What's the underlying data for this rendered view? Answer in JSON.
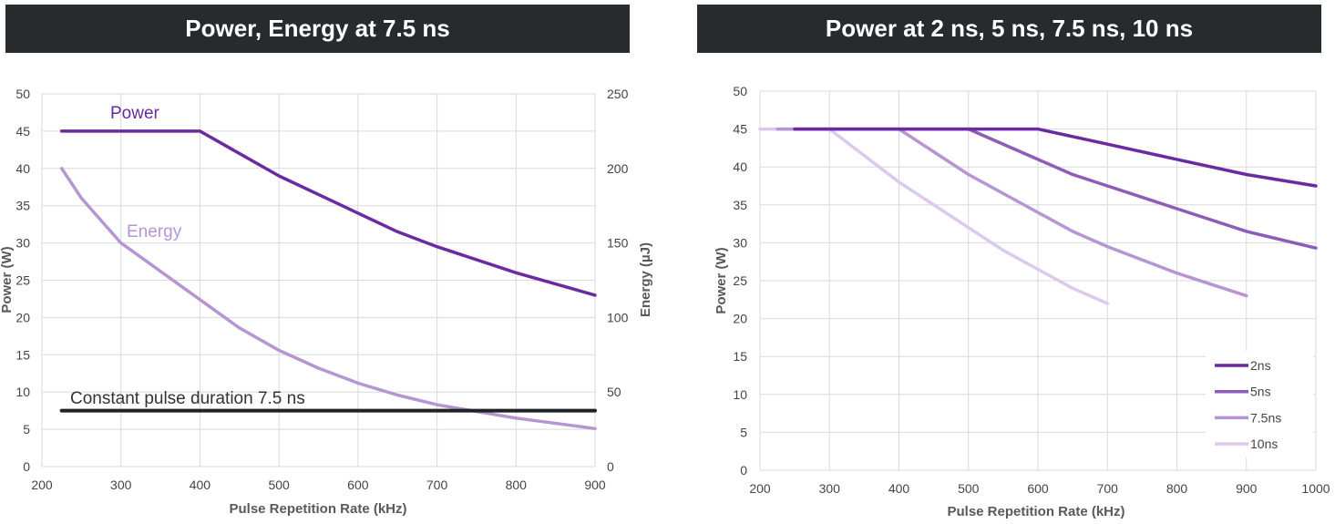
{
  "panels": {
    "left_title": "Power, Energy at 7.5 ns",
    "right_title": "Power at 2 ns, 5 ns, 7.5 ns, 10 ns"
  },
  "colors": {
    "power": "#6a2aa0",
    "energy": "#b695d3",
    "constant": "#1f2326",
    "2ns": "#6a2aa0",
    "5ns": "#8c5cb8",
    "7.5ns": "#b695d3",
    "10ns": "#dcc9eb",
    "grid": "#d9d9d9"
  },
  "chart_data": [
    {
      "type": "line",
      "title": "Power, Energy at 7.5 ns",
      "xlabel": "Pulse Repetition Rate (kHz)",
      "ylabel": "Power (W)",
      "y2label": "Energy (µJ)",
      "xlim": [
        200,
        900
      ],
      "ylim": [
        0,
        50
      ],
      "y2lim": [
        0,
        250
      ],
      "xticks": [
        "200",
        "300",
        "400",
        "500",
        "600",
        "700",
        "800",
        "900"
      ],
      "yticks": [
        "0",
        "5",
        "10",
        "15",
        "20",
        "25",
        "30",
        "35",
        "40",
        "45",
        "50"
      ],
      "y2ticks": [
        "0",
        "50",
        "100",
        "150",
        "200",
        "250"
      ],
      "series": [
        {
          "name": "Power",
          "axis": "left",
          "color_key": "power",
          "x": [
            225,
            400,
            500,
            550,
            600,
            650,
            700,
            800,
            900
          ],
          "y": [
            45,
            45,
            39,
            36.5,
            34,
            31.5,
            29.5,
            26,
            23
          ]
        },
        {
          "name": "Energy",
          "axis": "right",
          "color_key": "energy",
          "x": [
            225,
            250,
            300,
            350,
            400,
            450,
            500,
            550,
            600,
            650,
            700,
            750,
            800,
            900
          ],
          "y": [
            200,
            180,
            150,
            131,
            112,
            93,
            78,
            66,
            56,
            48,
            41.5,
            37,
            32.5,
            25.5
          ]
        },
        {
          "name": "Constant",
          "axis": "left",
          "color_key": "constant",
          "x": [
            225,
            900
          ],
          "y": [
            7.5,
            7.5
          ]
        }
      ],
      "annotations": [
        "Power",
        "Energy",
        "Constant pulse duration 7.5 ns"
      ]
    },
    {
      "type": "line",
      "title": "Power at 2 ns, 5 ns, 7.5 ns, 10 ns",
      "xlabel": "Pulse Repetition Rate (kHz)",
      "ylabel": "Power (W)",
      "xlim": [
        200,
        1000
      ],
      "ylim": [
        0,
        50
      ],
      "xticks": [
        "200",
        "300",
        "400",
        "500",
        "600",
        "700",
        "800",
        "900",
        "1000"
      ],
      "yticks": [
        "0",
        "5",
        "10",
        "15",
        "20",
        "25",
        "30",
        "35",
        "40",
        "45",
        "50"
      ],
      "legend_position": "bottom-right",
      "series": [
        {
          "name": "2ns",
          "color_key": "2ns",
          "x": [
            250,
            600,
            700,
            800,
            900,
            1000
          ],
          "y": [
            45,
            45,
            43,
            41,
            39,
            37.5
          ]
        },
        {
          "name": "5ns",
          "color_key": "5ns",
          "x": [
            250,
            500,
            600,
            650,
            700,
            800,
            900,
            1000
          ],
          "y": [
            45,
            45,
            41,
            39,
            37.5,
            34.5,
            31.5,
            29.3
          ]
        },
        {
          "name": "7.5ns",
          "color_key": "7.5ns",
          "x": [
            225,
            400,
            500,
            600,
            650,
            700,
            800,
            900
          ],
          "y": [
            45,
            45,
            39,
            34,
            31.5,
            29.5,
            26,
            23
          ]
        },
        {
          "name": "10ns",
          "color_key": "10ns",
          "x": [
            200,
            300,
            400,
            500,
            550,
            600,
            650,
            700
          ],
          "y": [
            45,
            45,
            38,
            32,
            29,
            26.5,
            24,
            22
          ]
        }
      ]
    }
  ]
}
